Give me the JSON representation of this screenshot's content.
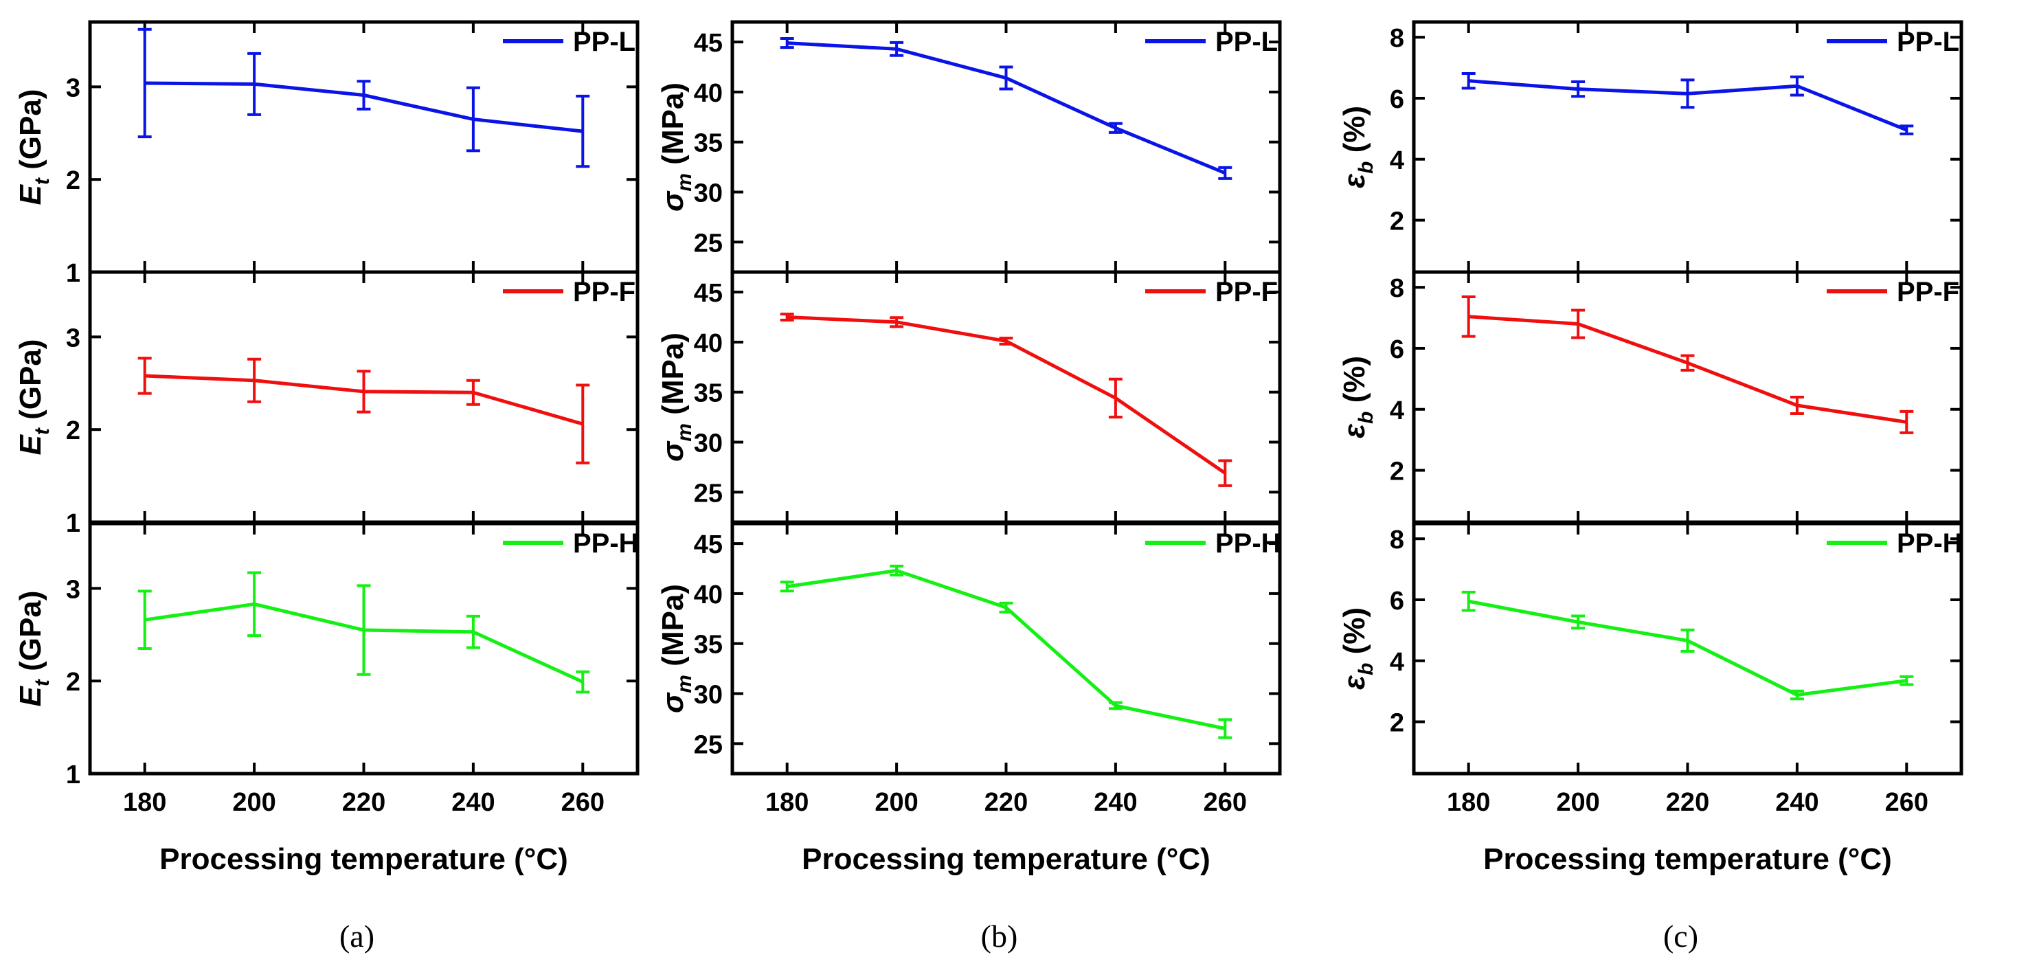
{
  "figure": {
    "x_label": "Processing temperature (°C)",
    "captions": [
      "(a)",
      "(b)",
      "(c)"
    ]
  },
  "colors": {
    "PP-L": "#0a14e6",
    "PP-F": "#f00f0f",
    "PP-H": "#14f014"
  },
  "chart_data": [
    {
      "type": "line",
      "panel": "a",
      "caption": "(a)",
      "xlabel": "Processing temperature (°C)",
      "x": [
        180,
        200,
        220,
        240,
        260
      ],
      "xlim": [
        170,
        270
      ],
      "xticks": [
        "180",
        "200",
        "220",
        "240",
        "260"
      ],
      "rows": [
        {
          "name": "PP-L",
          "ylabel_main": "E",
          "ylabel_sub": "t",
          "ylabel_unit": " (GPa)",
          "ylim": [
            1,
            3.7
          ],
          "yticks": [
            "1",
            "2",
            "3"
          ],
          "values": [
            3.04,
            3.03,
            2.91,
            2.65,
            2.52
          ],
          "errors": [
            0.58,
            0.33,
            0.15,
            0.34,
            0.38
          ]
        },
        {
          "name": "PP-F",
          "ylabel_main": "E",
          "ylabel_sub": "t",
          "ylabel_unit": " (GPa)",
          "ylim": [
            1,
            3.7
          ],
          "yticks": [
            "1",
            "2",
            "3"
          ],
          "values": [
            2.58,
            2.53,
            2.41,
            2.4,
            2.06
          ],
          "errors": [
            0.19,
            0.23,
            0.22,
            0.13,
            0.42
          ]
        },
        {
          "name": "PP-H",
          "ylabel_main": "E",
          "ylabel_sub": "t",
          "ylabel_unit": " (GPa)",
          "ylim": [
            1,
            3.7
          ],
          "yticks": [
            "1",
            "2",
            "3"
          ],
          "values": [
            2.66,
            2.83,
            2.55,
            2.53,
            1.99
          ],
          "errors": [
            0.31,
            0.34,
            0.48,
            0.17,
            0.11
          ]
        }
      ]
    },
    {
      "type": "line",
      "panel": "b",
      "caption": "(b)",
      "xlabel": "Processing temperature (°C)",
      "x": [
        180,
        200,
        220,
        240,
        260
      ],
      "xlim": [
        170,
        270
      ],
      "xticks": [
        "180",
        "200",
        "220",
        "240",
        "260"
      ],
      "rows": [
        {
          "name": "PP-L",
          "ylabel_main": "σ",
          "ylabel_sub": "m",
          "ylabel_unit": " (MPa)",
          "ylim": [
            22,
            47
          ],
          "yticks": [
            "25",
            "30",
            "35",
            "40",
            "45"
          ],
          "values": [
            44.9,
            44.3,
            41.4,
            36.4,
            31.9
          ],
          "errors": [
            0.45,
            0.65,
            1.1,
            0.45,
            0.55
          ]
        },
        {
          "name": "PP-F",
          "ylabel_main": "σ",
          "ylabel_sub": "m",
          "ylabel_unit": " (MPa)",
          "ylim": [
            22,
            47
          ],
          "yticks": [
            "25",
            "30",
            "35",
            "40",
            "45"
          ],
          "values": [
            42.5,
            42.0,
            40.1,
            34.4,
            26.9
          ],
          "errors": [
            0.3,
            0.45,
            0.3,
            1.9,
            1.25
          ]
        },
        {
          "name": "PP-H",
          "ylabel_main": "σ",
          "ylabel_sub": "m",
          "ylabel_unit": " (MPa)",
          "ylim": [
            22,
            47
          ],
          "yticks": [
            "25",
            "30",
            "35",
            "40",
            "45"
          ],
          "values": [
            40.7,
            42.3,
            38.6,
            28.8,
            26.5
          ],
          "errors": [
            0.45,
            0.45,
            0.45,
            0.3,
            0.9
          ]
        }
      ]
    },
    {
      "type": "line",
      "panel": "c",
      "caption": "(c)",
      "xlabel": "Processing temperature (°C)",
      "x": [
        180,
        200,
        220,
        240,
        260
      ],
      "xlim": [
        170,
        270
      ],
      "xticks": [
        "180",
        "200",
        "220",
        "240",
        "260"
      ],
      "rows": [
        {
          "name": "PP-L",
          "ylabel_main": "ε",
          "ylabel_sub": "b",
          "ylabel_unit": " (%)",
          "ylim": [
            0.3,
            8.5
          ],
          "yticks": [
            "2",
            "4",
            "6",
            "8"
          ],
          "values": [
            6.57,
            6.3,
            6.15,
            6.4,
            4.96
          ],
          "errors": [
            0.24,
            0.24,
            0.45,
            0.3,
            0.13
          ]
        },
        {
          "name": "PP-F",
          "ylabel_main": "ε",
          "ylabel_sub": "b",
          "ylabel_unit": " (%)",
          "ylim": [
            0.3,
            8.5
          ],
          "yticks": [
            "2",
            "4",
            "6",
            "8"
          ],
          "values": [
            7.04,
            6.8,
            5.52,
            4.13,
            3.58
          ],
          "errors": [
            0.65,
            0.45,
            0.24,
            0.27,
            0.35
          ]
        },
        {
          "name": "PP-H",
          "ylabel_main": "ε",
          "ylabel_sub": "b",
          "ylabel_unit": " (%)",
          "ylim": [
            0.3,
            8.5
          ],
          "yticks": [
            "2",
            "4",
            "6",
            "8"
          ],
          "values": [
            5.95,
            5.27,
            4.66,
            2.88,
            3.35
          ],
          "errors": [
            0.3,
            0.2,
            0.35,
            0.13,
            0.13
          ]
        }
      ]
    }
  ]
}
